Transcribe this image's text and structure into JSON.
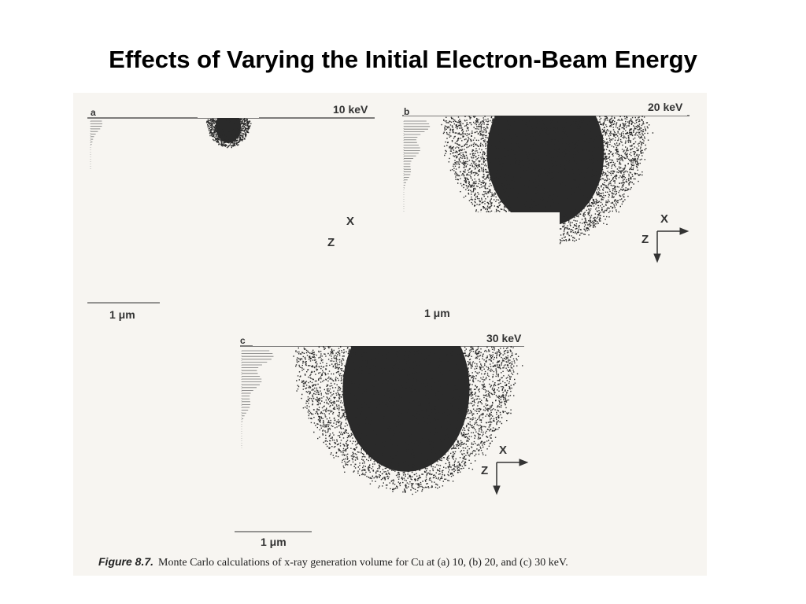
{
  "title": "Effects of Varying the Initial Electron-Beam Energy",
  "panels": [
    {
      "letter": "a",
      "energy": "10 keV",
      "scale": "1 μm",
      "axis_x": "X",
      "axis_z": "Z"
    },
    {
      "letter": "b",
      "energy": "20 keV",
      "scale": "1 μm",
      "axis_x": "X",
      "axis_z": "Z"
    },
    {
      "letter": "c",
      "energy": "30 keV",
      "scale": "1 μm",
      "axis_x": "X",
      "axis_z": "Z"
    }
  ],
  "caption": {
    "figure": "Figure 8.7.",
    "text": "Monte Carlo calculations of x-ray generation volume for Cu at (a) 10, (b) 20, and (c) 30 keV."
  },
  "colors": {
    "dots": "#2a2a2a",
    "paper": "#f7f5f1",
    "ink": "#333333"
  }
}
